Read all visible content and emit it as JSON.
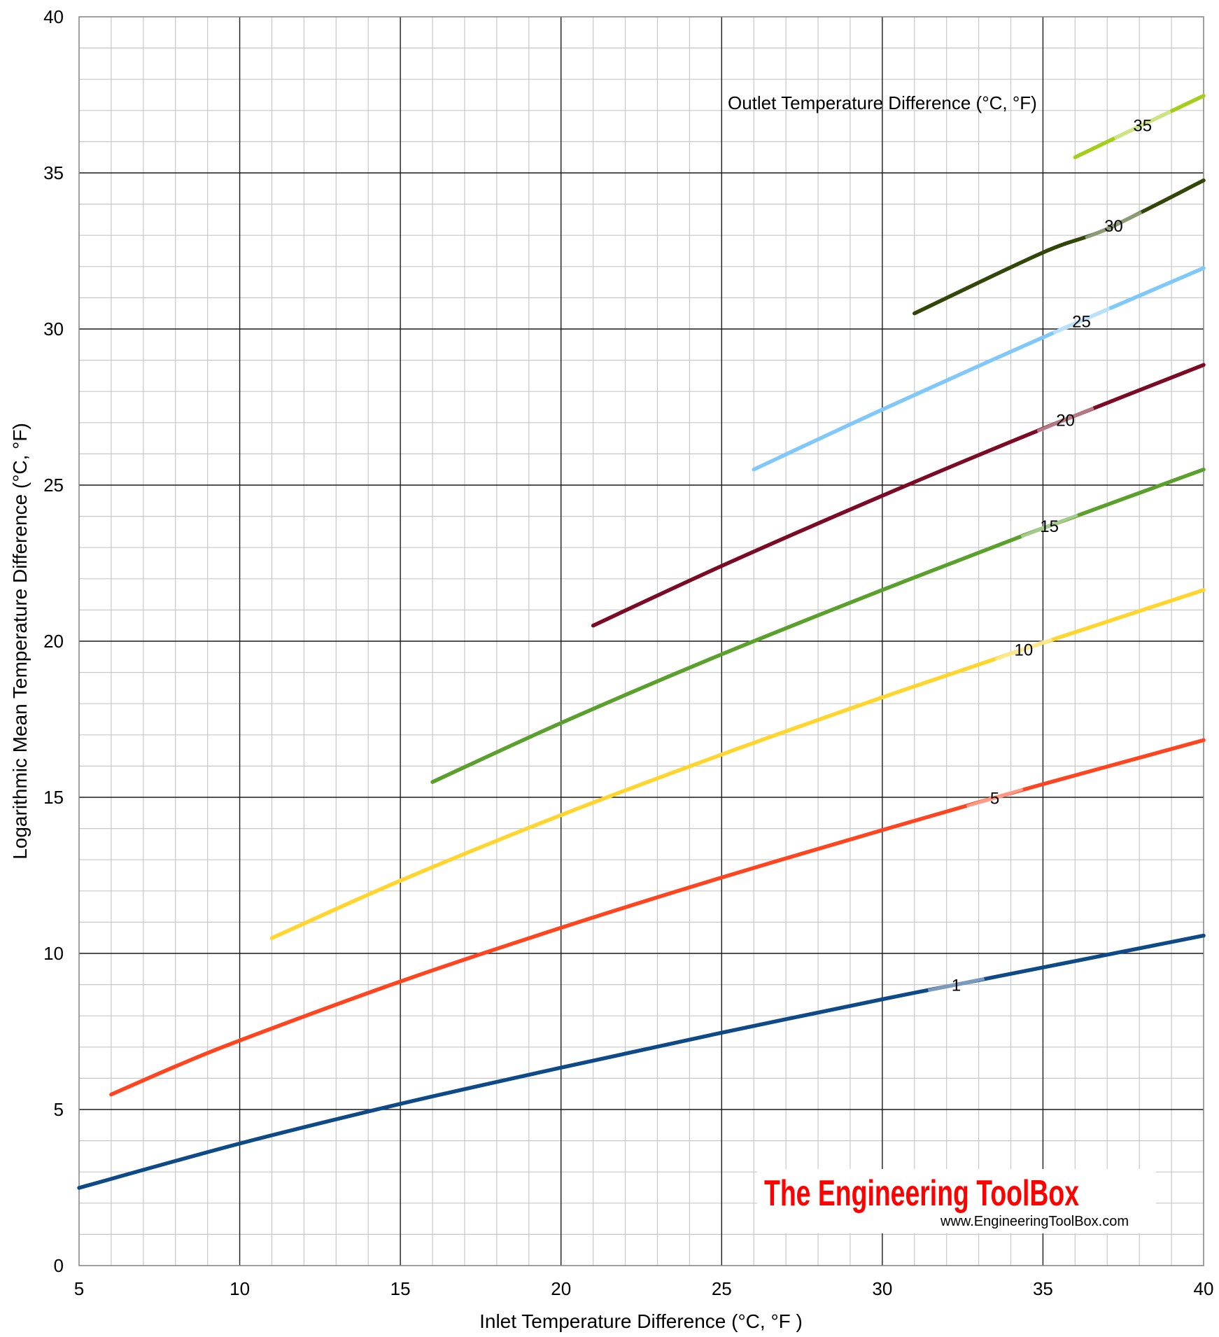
{
  "chart_data": {
    "type": "line",
    "xlabel": "Inlet Temperature Difference (°C, °F  )",
    "ylabel": "Logarithmic Mean Temperature Difference (°C, °F)",
    "xlim": [
      5,
      40
    ],
    "ylim": [
      0,
      40
    ],
    "x_ticks": [
      5,
      10,
      15,
      20,
      25,
      30,
      35,
      40
    ],
    "y_ticks": [
      0,
      5,
      10,
      15,
      20,
      25,
      30,
      35,
      40
    ],
    "grid": true,
    "legend_title": "Outlet Temperature Difference (°C, °F)",
    "series": [
      {
        "name": "1",
        "color": "#0d4a87",
        "x": [
          5,
          10,
          15,
          20,
          25,
          30,
          32,
          35,
          40
        ],
        "y": [
          2.49,
          3.91,
          5.18,
          6.34,
          7.46,
          8.53,
          8.94,
          9.55,
          10.57
        ]
      },
      {
        "name": "5",
        "color": "#ff4520",
        "x": [
          6,
          8,
          10,
          15,
          20,
          25,
          30,
          33,
          35,
          40
        ],
        "y": [
          5.48,
          6.38,
          7.21,
          9.1,
          10.82,
          12.43,
          13.95,
          14.84,
          15.42,
          16.83
        ]
      },
      {
        "name": "10",
        "color": "#ffd52e",
        "x": [
          11,
          15,
          20,
          25,
          30,
          34,
          35,
          40
        ],
        "y": [
          10.49,
          12.33,
          14.43,
          16.37,
          18.2,
          19.6,
          19.95,
          21.64
        ]
      },
      {
        "name": "15",
        "color": "#5ba02c",
        "x": [
          16,
          20,
          25,
          30,
          34,
          35,
          40
        ],
        "y": [
          15.49,
          17.38,
          19.58,
          21.64,
          23.23,
          23.62,
          25.5
        ]
      },
      {
        "name": "20",
        "color": "#7a0a26",
        "x": [
          21,
          25,
          30,
          35,
          40
        ],
        "y": [
          20.5,
          22.41,
          24.66,
          26.81,
          28.85
        ]
      },
      {
        "name": "25",
        "color": "#80c8fa",
        "x": [
          26,
          30,
          35,
          40
        ],
        "y": [
          25.5,
          27.42,
          29.73,
          31.95
        ]
      },
      {
        "name": "30",
        "color": "#324607",
        "x": [
          31,
          35,
          37,
          40
        ],
        "y": [
          30.5,
          32.45,
          33.21,
          34.76
        ]
      },
      {
        "name": "35",
        "color": "#a6cd1c",
        "x": [
          36,
          38,
          40
        ],
        "y": [
          35.5,
          36.49,
          37.47
        ]
      }
    ],
    "series_label_positions_x": {
      "1": 32.3,
      "5": 33.5,
      "10": 34.4,
      "15": 35.2,
      "20": 35.7,
      "25": 36.2,
      "30": 37.2,
      "35": 38.1
    }
  },
  "watermark": {
    "name": "The Engineering ToolBox",
    "url": "www.EngineeringToolBox.com"
  }
}
